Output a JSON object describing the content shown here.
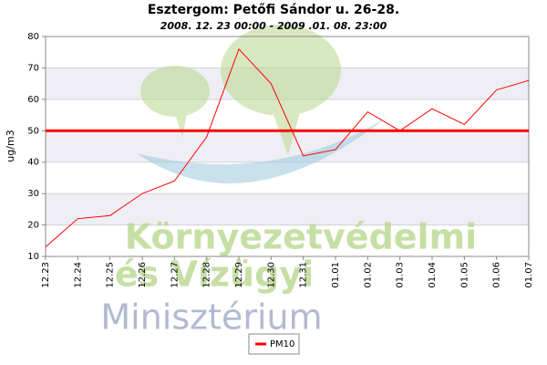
{
  "chart_data": {
    "type": "line",
    "title": "Esztergom: Petőfi Sándor u. 26-28.",
    "subtitle": "2008. 12. 23 00:00 - 2009 .01. 08. 23:00",
    "y_label": "ug/m3",
    "categories": [
      "12.23",
      "12.24",
      "12.25",
      "12.26",
      "12.27",
      "12.28",
      "12.29",
      "12.30",
      "12.31",
      "01.01",
      "01.02",
      "01.03",
      "01.04",
      "01.05",
      "01.06",
      "01.07"
    ],
    "series": [
      {
        "name": "PM10",
        "color": "#ff0000",
        "values": [
          13,
          22,
          23,
          30,
          34,
          48,
          76,
          65,
          42,
          44,
          56,
          50,
          57,
          52,
          63,
          66
        ]
      }
    ],
    "threshold": {
      "value": 50,
      "color": "#ff0000"
    },
    "ylim": [
      10,
      80
    ],
    "yticks": [
      10,
      20,
      30,
      40,
      50,
      60,
      70,
      80
    ],
    "grid": true,
    "watermark": [
      "Környezetvédelmi",
      "és Vízügyi",
      "Minisztérium"
    ]
  }
}
